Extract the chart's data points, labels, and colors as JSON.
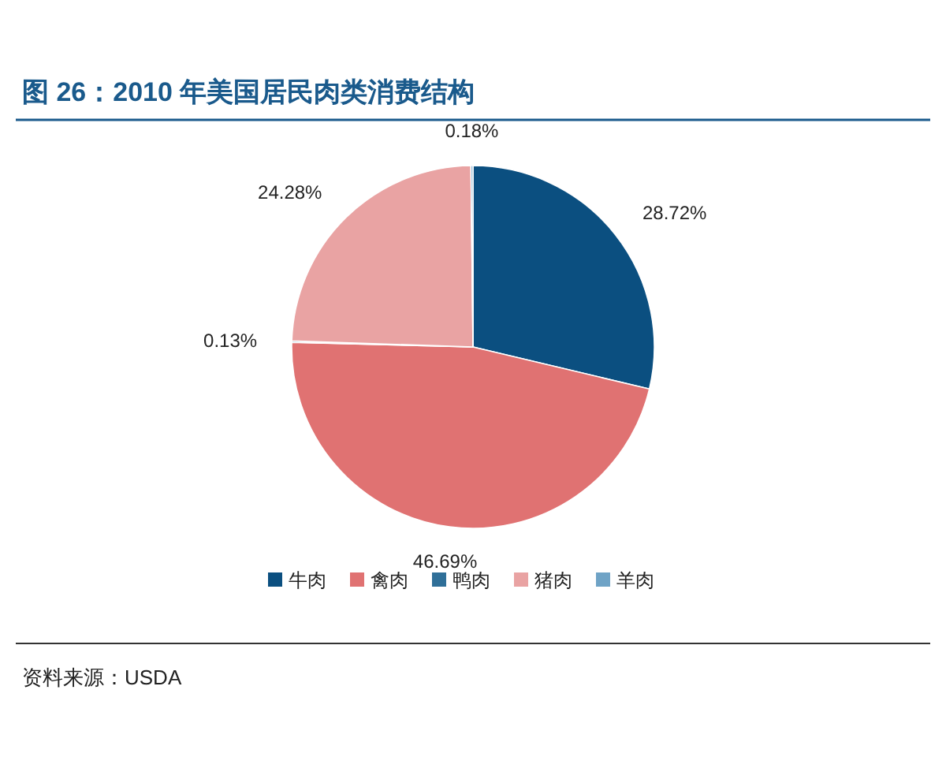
{
  "chart_data": {
    "type": "pie",
    "title": "图 26：2010 年美国居民肉类消费结构",
    "categories": [
      "牛肉",
      "禽肉",
      "鸭肉",
      "猪肉",
      "羊肉"
    ],
    "values": [
      28.72,
      46.69,
      0.13,
      24.28,
      0.18
    ],
    "value_labels": [
      "28.72%",
      "46.69%",
      "0.13%",
      "24.28%",
      "0.18%"
    ],
    "colors": [
      "#0b4f80",
      "#e07272",
      "#2f6f98",
      "#e9a3a3",
      "#6fa3c6"
    ],
    "legend": "bottom",
    "annotations": [
      "资料来源：USDA"
    ]
  }
}
